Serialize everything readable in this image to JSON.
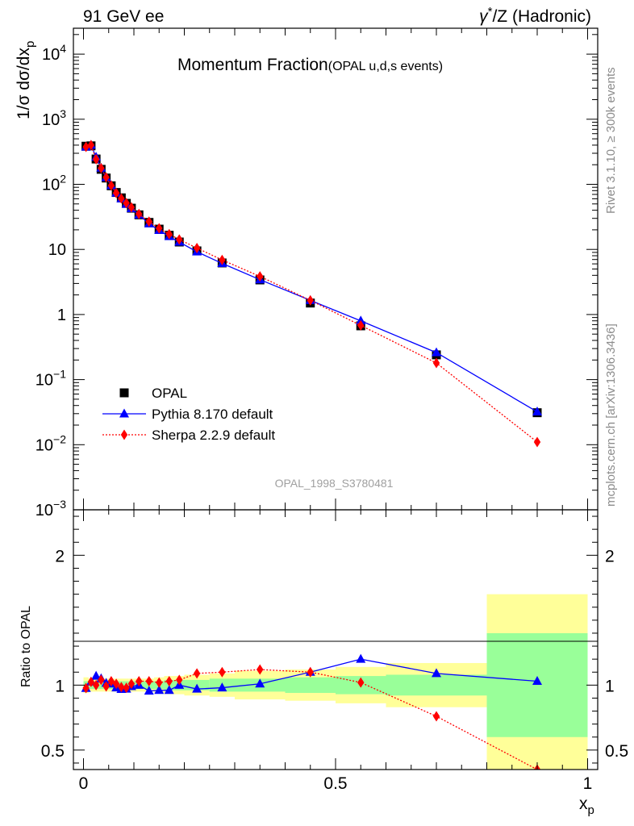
{
  "header": {
    "left": "91 GeV ee",
    "right_base": "γ",
    "right_sup": "*",
    "right_rest": "/Z (Hadronic)"
  },
  "side_labels": {
    "rivet": "Rivet 3.1.10, ≥ 300k events",
    "mcplots": "mcplots.cern.ch [arXiv:1306.3436]"
  },
  "chart_data": [
    {
      "type": "line",
      "title_main": "Momentum Fraction",
      "title_sub": "(OPAL u,d,s events)",
      "ylabel": "1/σ dσ/dx_p",
      "xlabel": "x_p",
      "yscale": "log",
      "ylim": [
        0.001,
        25000
      ],
      "xlim": [
        -0.02,
        1.02
      ],
      "analysis_id": "OPAL_1998_S3780481",
      "y_ticks": [
        {
          "base": "10",
          "exp": "4",
          "value": 10000
        },
        {
          "base": "10",
          "exp": "3",
          "value": 1000
        },
        {
          "base": "10",
          "exp": "2",
          "value": 100
        },
        {
          "base": "10",
          "exp": "",
          "value": 10
        },
        {
          "base": "1",
          "exp": "",
          "value": 1
        },
        {
          "base": "10",
          "exp": "−1",
          "value": 0.1
        },
        {
          "base": "10",
          "exp": "−2",
          "value": 0.01
        },
        {
          "base": "10",
          "exp": "−3",
          "value": 0.001
        }
      ],
      "legend": [
        {
          "label": "OPAL",
          "marker": "square",
          "color": "#000000"
        },
        {
          "label": "Pythia 8.170 default",
          "marker": "triangle",
          "color": "#0000ff"
        },
        {
          "label": "Sherpa 2.2.9 default",
          "marker": "diamond",
          "color": "#ff0000"
        }
      ],
      "series": [
        {
          "name": "OPAL",
          "color": "#000000",
          "x": [
            0.005,
            0.015,
            0.025,
            0.035,
            0.045,
            0.055,
            0.065,
            0.075,
            0.085,
            0.095,
            0.11,
            0.13,
            0.15,
            0.17,
            0.19,
            0.225,
            0.275,
            0.35,
            0.45,
            0.55,
            0.7,
            0.9
          ],
          "y": [
            385,
            390,
            245,
            170,
            125,
            95,
            75,
            62,
            51,
            43,
            34,
            26,
            20.5,
            16.5,
            13,
            9.5,
            6.2,
            3.4,
            1.5,
            0.67,
            0.24,
            0.031
          ]
        },
        {
          "name": "Pythia 8.170 default",
          "color": "#0000ff",
          "x": [
            0.005,
            0.015,
            0.025,
            0.035,
            0.045,
            0.055,
            0.065,
            0.075,
            0.085,
            0.095,
            0.11,
            0.13,
            0.15,
            0.17,
            0.19,
            0.225,
            0.275,
            0.35,
            0.45,
            0.55,
            0.7,
            0.9
          ],
          "y": [
            376,
            400,
            262,
            178,
            127,
            96,
            73.5,
            60,
            49.5,
            42.5,
            34,
            24.8,
            19.7,
            15.8,
            13,
            9.2,
            6.1,
            3.43,
            1.65,
            0.8,
            0.26,
            0.032
          ]
        },
        {
          "name": "Sherpa 2.2.9 default",
          "color": "#ff0000",
          "x": [
            0.005,
            0.015,
            0.025,
            0.035,
            0.045,
            0.055,
            0.065,
            0.075,
            0.085,
            0.095,
            0.11,
            0.13,
            0.15,
            0.17,
            0.19,
            0.225,
            0.275,
            0.35,
            0.45,
            0.55,
            0.7,
            0.9
          ],
          "y": [
            376,
            400,
            243,
            177,
            128,
            96,
            73.5,
            60.8,
            51.5,
            44.3,
            35,
            26.7,
            21.1,
            17.2,
            14.2,
            10.5,
            6.9,
            3.85,
            1.65,
            0.68,
            0.18,
            0.011
          ]
        }
      ]
    },
    {
      "type": "line",
      "ylabel": "Ratio to OPAL",
      "xlabel": "x_p",
      "ylim": [
        0.35,
        2.35
      ],
      "xlim": [
        -0.02,
        1.02
      ],
      "x_ticks": [
        {
          "label": "0",
          "value": 0
        },
        {
          "label": "0.5",
          "value": 0.5
        },
        {
          "label": "1",
          "value": 1
        }
      ],
      "y_ticks": [
        {
          "label": "0.5",
          "value": 0.5
        },
        {
          "label": "1",
          "value": 1
        },
        {
          "label": "2",
          "value": 2
        }
      ],
      "bands": {
        "bins": [
          0,
          0.01,
          0.02,
          0.03,
          0.04,
          0.05,
          0.06,
          0.07,
          0.08,
          0.09,
          0.1,
          0.12,
          0.14,
          0.16,
          0.18,
          0.2,
          0.25,
          0.3,
          0.4,
          0.5,
          0.6,
          0.8,
          1.0
        ],
        "outer": [
          0.06,
          0.05,
          0.05,
          0.05,
          0.05,
          0.05,
          0.05,
          0.05,
          0.05,
          0.05,
          0.05,
          0.05,
          0.06,
          0.07,
          0.07,
          0.08,
          0.09,
          0.11,
          0.12,
          0.14,
          0.17,
          0.7
        ],
        "inner": [
          0.03,
          0.03,
          0.03,
          0.03,
          0.03,
          0.03,
          0.03,
          0.03,
          0.03,
          0.03,
          0.03,
          0.03,
          0.03,
          0.04,
          0.04,
          0.04,
          0.05,
          0.05,
          0.06,
          0.07,
          0.08,
          0.4
        ],
        "outer_color": "#ffff99",
        "inner_color": "#99ff99"
      },
      "series": [
        {
          "name": "Pythia 8.170 default",
          "color": "#0000ff",
          "x": [
            0.005,
            0.015,
            0.025,
            0.035,
            0.045,
            0.055,
            0.065,
            0.075,
            0.085,
            0.095,
            0.11,
            0.13,
            0.15,
            0.17,
            0.19,
            0.225,
            0.275,
            0.35,
            0.45,
            0.55,
            0.7,
            0.9
          ],
          "y": [
            0.976,
            1.025,
            1.07,
            1.05,
            1.015,
            1.01,
            0.98,
            0.968,
            0.97,
            0.99,
            1.0,
            0.955,
            0.96,
            0.96,
            1.0,
            0.97,
            0.98,
            1.01,
            1.1,
            1.2,
            1.09,
            1.03
          ]
        },
        {
          "name": "Sherpa 2.2.9 default",
          "color": "#ff0000",
          "x": [
            0.005,
            0.015,
            0.025,
            0.035,
            0.045,
            0.055,
            0.065,
            0.075,
            0.085,
            0.095,
            0.11,
            0.13,
            0.15,
            0.17,
            0.19,
            0.225,
            0.275,
            0.35,
            0.45,
            0.55,
            0.7,
            0.9
          ],
          "y": [
            0.977,
            1.025,
            1.0,
            1.04,
            0.99,
            1.03,
            1.01,
            0.985,
            0.98,
            1.01,
            1.03,
            1.03,
            1.02,
            1.03,
            1.04,
            1.09,
            1.1,
            1.12,
            1.1,
            1.02,
            0.76,
            0.35
          ]
        }
      ]
    }
  ]
}
